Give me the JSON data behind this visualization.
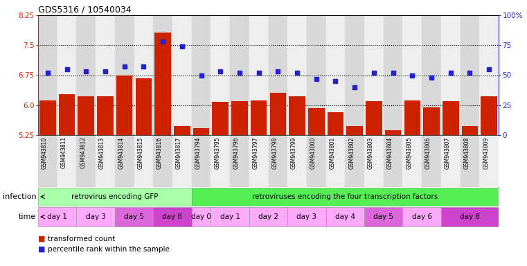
{
  "title": "GDS5316 / 10540034",
  "samples": [
    "GSM943810",
    "GSM943811",
    "GSM943812",
    "GSM943813",
    "GSM943814",
    "GSM943815",
    "GSM943816",
    "GSM943817",
    "GSM943794",
    "GSM943795",
    "GSM943796",
    "GSM943797",
    "GSM943798",
    "GSM943799",
    "GSM943800",
    "GSM943801",
    "GSM943802",
    "GSM943803",
    "GSM943804",
    "GSM943805",
    "GSM943806",
    "GSM943807",
    "GSM943808",
    "GSM943809"
  ],
  "bar_values": [
    6.12,
    6.28,
    6.22,
    6.22,
    6.75,
    6.68,
    7.82,
    5.48,
    5.42,
    6.08,
    6.1,
    6.12,
    6.3,
    6.22,
    5.92,
    5.82,
    5.48,
    6.1,
    5.38,
    6.12,
    5.95,
    6.1,
    5.48,
    6.22
  ],
  "dot_values": [
    52,
    55,
    53,
    53,
    57,
    57,
    78,
    74,
    50,
    53,
    52,
    52,
    53,
    52,
    47,
    45,
    40,
    52,
    52,
    50,
    48,
    52,
    52,
    55
  ],
  "ylim_left": [
    5.25,
    8.25
  ],
  "ylim_right": [
    0,
    100
  ],
  "yticks_left": [
    5.25,
    6.0,
    6.75,
    7.5,
    8.25
  ],
  "yticks_right": [
    0,
    25,
    50,
    75,
    100
  ],
  "bar_color": "#cc2200",
  "dot_color": "#2222cc",
  "bg_even": "#d8d8d8",
  "bg_odd": "#eeeeee",
  "infection_groups": [
    {
      "label": "retrovirus encoding GFP",
      "start": 0,
      "end": 8,
      "color": "#aaffaa"
    },
    {
      "label": "retroviruses encoding the four transcription factors",
      "start": 8,
      "end": 24,
      "color": "#55ee55"
    }
  ],
  "time_groups": [
    {
      "label": "day 1",
      "start": 0,
      "end": 2,
      "color": "#ffaaff"
    },
    {
      "label": "day 3",
      "start": 2,
      "end": 4,
      "color": "#ffaaff"
    },
    {
      "label": "day 5",
      "start": 4,
      "end": 6,
      "color": "#dd66dd"
    },
    {
      "label": "day 8",
      "start": 6,
      "end": 8,
      "color": "#cc44cc"
    },
    {
      "label": "day 0",
      "start": 8,
      "end": 9,
      "color": "#ffaaff"
    },
    {
      "label": "day 1",
      "start": 9,
      "end": 11,
      "color": "#ffaaff"
    },
    {
      "label": "day 2",
      "start": 11,
      "end": 13,
      "color": "#ffaaff"
    },
    {
      "label": "day 3",
      "start": 13,
      "end": 15,
      "color": "#ffaaff"
    },
    {
      "label": "day 4",
      "start": 15,
      "end": 17,
      "color": "#ffaaff"
    },
    {
      "label": "day 5",
      "start": 17,
      "end": 19,
      "color": "#dd66dd"
    },
    {
      "label": "day 6",
      "start": 19,
      "end": 21,
      "color": "#ffaaff"
    },
    {
      "label": "day 8",
      "start": 21,
      "end": 24,
      "color": "#cc44cc"
    }
  ],
  "legend_items": [
    {
      "label": "transformed count",
      "color": "#cc2200"
    },
    {
      "label": "percentile rank within the sample",
      "color": "#2222cc"
    }
  ]
}
